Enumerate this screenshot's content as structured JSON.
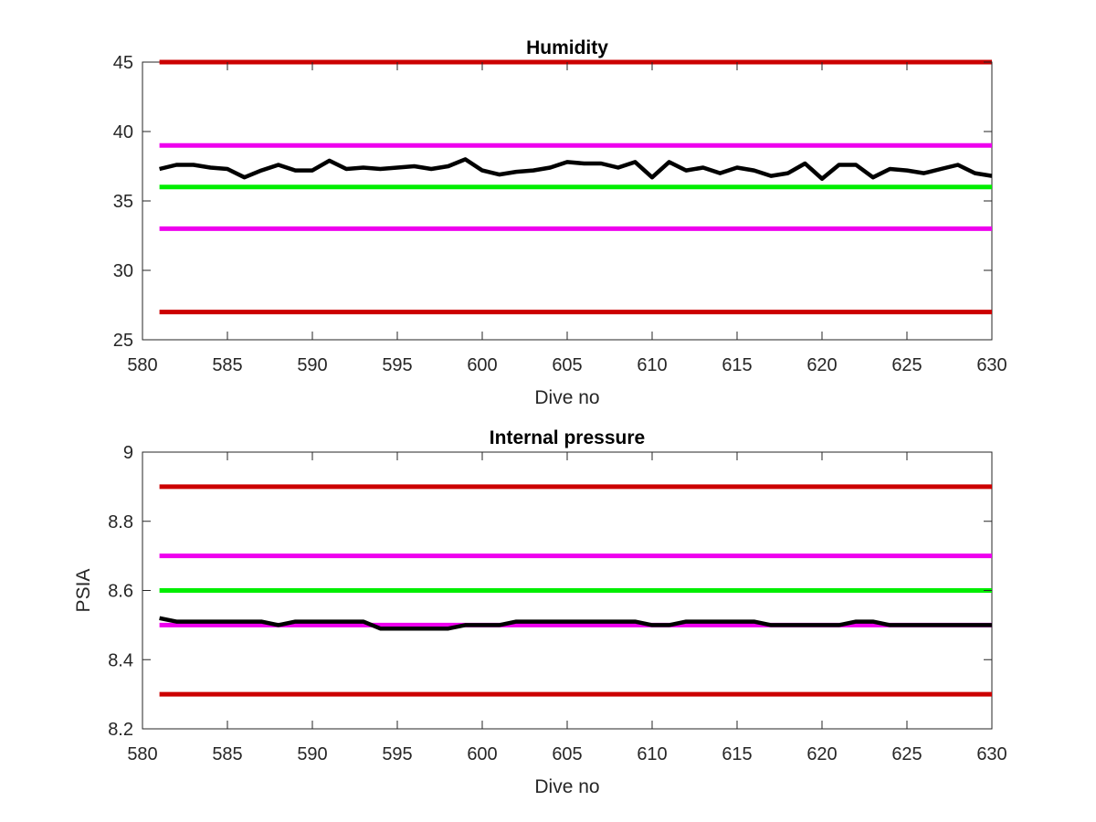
{
  "chart_data": [
    {
      "type": "line",
      "title": "Humidity",
      "xlabel": "Dive no",
      "ylabel": "",
      "xlim": [
        580,
        630
      ],
      "ylim": [
        25,
        45
      ],
      "xticks": [
        580,
        585,
        590,
        595,
        600,
        605,
        610,
        615,
        620,
        625,
        630
      ],
      "yticks": [
        25,
        30,
        35,
        40,
        45
      ],
      "xtick_labels": [
        "580",
        "585",
        "590",
        "595",
        "600",
        "605",
        "610",
        "615",
        "620",
        "625",
        "630"
      ],
      "ytick_labels": [
        "25",
        "30",
        "35",
        "40",
        "45"
      ],
      "grid": false,
      "reference_lines": [
        {
          "y": 45,
          "color": "#cc0000"
        },
        {
          "y": 39,
          "color": "#ee00ee"
        },
        {
          "y": 36,
          "color": "#00ee00"
        },
        {
          "y": 33,
          "color": "#ee00ee"
        },
        {
          "y": 27,
          "color": "#cc0000"
        }
      ],
      "series": [
        {
          "color": "#000000",
          "x": [
            581,
            582,
            583,
            584,
            585,
            586,
            587,
            588,
            589,
            590,
            591,
            592,
            593,
            594,
            595,
            596,
            597,
            598,
            599,
            600,
            601,
            602,
            603,
            604,
            605,
            606,
            607,
            608,
            609,
            610,
            611,
            612,
            613,
            614,
            615,
            616,
            617,
            618,
            619,
            620,
            621,
            622,
            623,
            624,
            625,
            626,
            627,
            628,
            629,
            630
          ],
          "values": [
            37.3,
            37.6,
            37.6,
            37.4,
            37.3,
            36.7,
            37.2,
            37.6,
            37.2,
            37.2,
            37.9,
            37.3,
            37.4,
            37.3,
            37.4,
            37.5,
            37.3,
            37.5,
            38.0,
            37.2,
            36.9,
            37.1,
            37.2,
            37.4,
            37.8,
            37.7,
            37.7,
            37.4,
            37.8,
            36.7,
            37.8,
            37.2,
            37.4,
            37.0,
            37.4,
            37.2,
            36.8,
            37.0,
            37.7,
            36.6,
            37.6,
            37.6,
            36.7,
            37.3,
            37.2,
            37.0,
            37.3,
            37.6,
            37.0,
            36.8
          ]
        }
      ]
    },
    {
      "type": "line",
      "title": "Internal pressure",
      "xlabel": "Dive no",
      "ylabel": "PSIA",
      "xlim": [
        580,
        630
      ],
      "ylim": [
        8.2,
        9.0
      ],
      "xticks": [
        580,
        585,
        590,
        595,
        600,
        605,
        610,
        615,
        620,
        625,
        630
      ],
      "yticks": [
        8.2,
        8.4,
        8.6,
        8.8,
        9.0
      ],
      "xtick_labels": [
        "580",
        "585",
        "590",
        "595",
        "600",
        "605",
        "610",
        "615",
        "620",
        "625",
        "630"
      ],
      "ytick_labels": [
        "8.2",
        "8.4",
        "8.6",
        "8.8",
        "9"
      ],
      "grid": false,
      "reference_lines": [
        {
          "y": 8.9,
          "color": "#cc0000"
        },
        {
          "y": 8.7,
          "color": "#ee00ee"
        },
        {
          "y": 8.6,
          "color": "#00ee00"
        },
        {
          "y": 8.5,
          "color": "#ee00ee"
        },
        {
          "y": 8.3,
          "color": "#cc0000"
        }
      ],
      "series": [
        {
          "color": "#000000",
          "x": [
            581,
            582,
            583,
            584,
            585,
            586,
            587,
            588,
            589,
            590,
            591,
            592,
            593,
            594,
            595,
            596,
            597,
            598,
            599,
            600,
            601,
            602,
            603,
            604,
            605,
            606,
            607,
            608,
            609,
            610,
            611,
            612,
            613,
            614,
            615,
            616,
            617,
            618,
            619,
            620,
            621,
            622,
            623,
            624,
            625,
            626,
            627,
            628,
            629,
            630
          ],
          "values": [
            8.52,
            8.51,
            8.51,
            8.51,
            8.51,
            8.51,
            8.51,
            8.5,
            8.51,
            8.51,
            8.51,
            8.51,
            8.51,
            8.49,
            8.49,
            8.49,
            8.49,
            8.49,
            8.5,
            8.5,
            8.5,
            8.51,
            8.51,
            8.51,
            8.51,
            8.51,
            8.51,
            8.51,
            8.51,
            8.5,
            8.5,
            8.51,
            8.51,
            8.51,
            8.51,
            8.51,
            8.5,
            8.5,
            8.5,
            8.5,
            8.5,
            8.51,
            8.51,
            8.5,
            8.5,
            8.5,
            8.5,
            8.5,
            8.5,
            8.5
          ]
        }
      ]
    }
  ]
}
